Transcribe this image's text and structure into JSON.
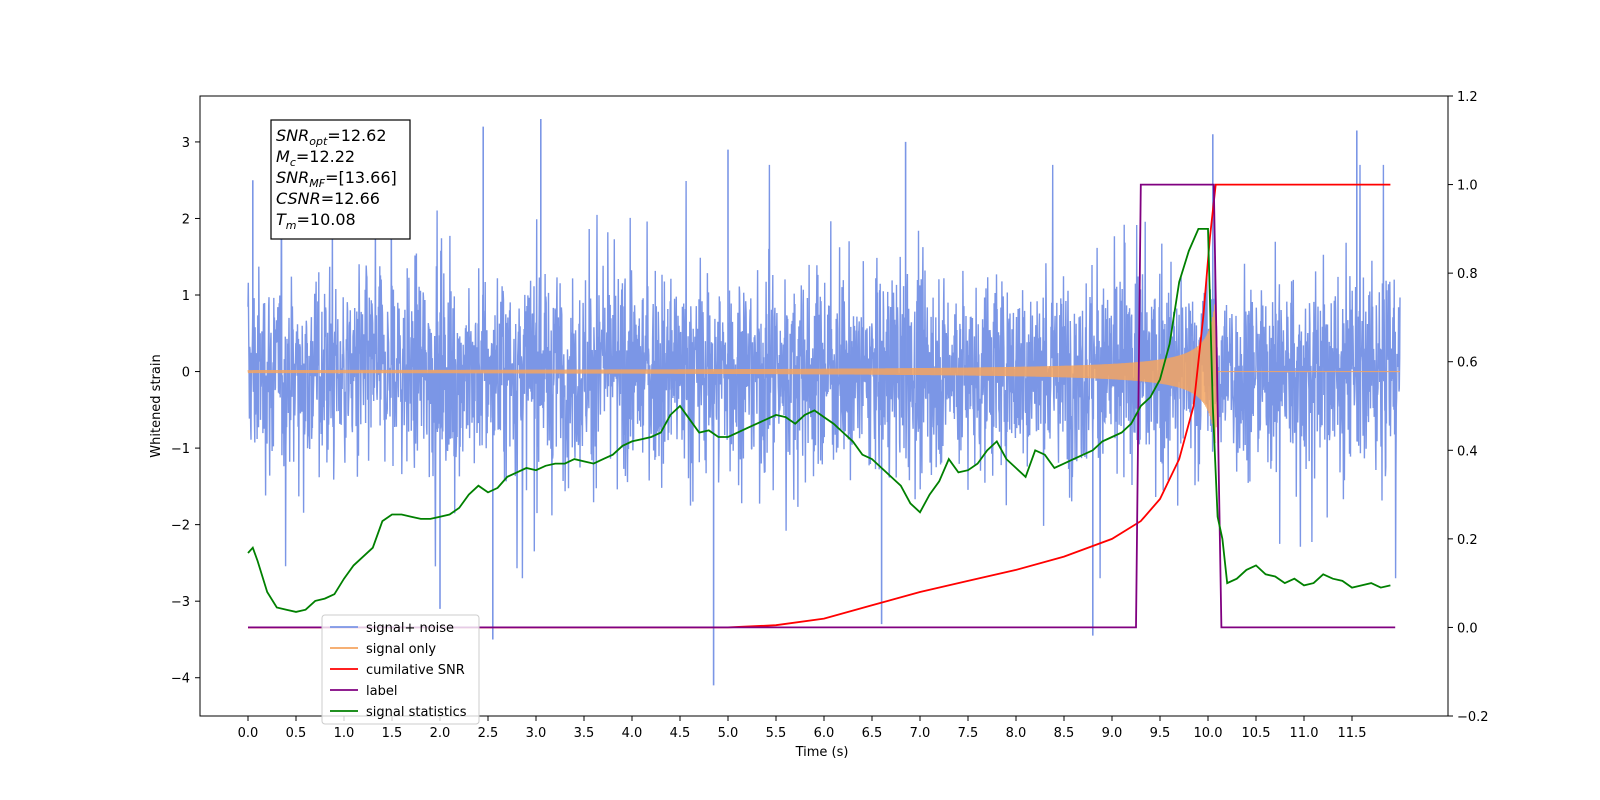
{
  "chart_data": {
    "type": "line",
    "xlabel": "Time (s)",
    "ylabel_left": "Whitened strain",
    "ylabel_right": "",
    "xlim": [
      -0.5,
      12.5
    ],
    "ylim_left": [
      -4.5,
      3.6
    ],
    "ylim_right": [
      -0.2,
      1.2
    ],
    "x_ticks": [
      "0.0",
      "0.5",
      "1.0",
      "1.5",
      "2.0",
      "2.5",
      "3.0",
      "3.5",
      "4.0",
      "4.5",
      "5.0",
      "5.5",
      "6.0",
      "6.5",
      "7.0",
      "7.5",
      "8.0",
      "8.5",
      "9.0",
      "9.5",
      "10.0",
      "10.5",
      "11.0",
      "11.5"
    ],
    "y_ticks_left": [
      "3",
      "2",
      "1",
      "0",
      "−1",
      "−2",
      "−3",
      "−4"
    ],
    "y_ticks_right": [
      "1.2",
      "1.0",
      "0.8",
      "0.6",
      "0.4",
      "0.2",
      "0.0",
      "−0.2"
    ],
    "grid": false,
    "legend_position": "lower-left",
    "annotation": {
      "lines": [
        {
          "sym": "SNR",
          "sub": "opt",
          "value": "=12.62"
        },
        {
          "sym": "M",
          "sub": "c",
          "value": "=12.22"
        },
        {
          "sym": "SNR",
          "sub": "MF",
          "value": "=[13.66]"
        },
        {
          "sym": "CSNR",
          "sub": "",
          "value": "=12.66"
        },
        {
          "sym": "T",
          "sub": "m",
          "value": "=10.08"
        }
      ]
    },
    "series": [
      {
        "name": "signal+ noise",
        "color": "#7b96e6",
        "axis": "left",
        "x_range": [
          0.0,
          12.0
        ],
        "typical_band": [
          -1.5,
          1.5
        ],
        "peaks": [
          {
            "x": 0.05,
            "y": 2.5
          },
          {
            "x": 2.45,
            "y": 3.2
          },
          {
            "x": 3.05,
            "y": 3.3
          },
          {
            "x": 5.0,
            "y": 2.9
          },
          {
            "x": 6.85,
            "y": 3.0
          },
          {
            "x": 10.05,
            "y": 3.1
          },
          {
            "x": 11.55,
            "y": 3.15
          },
          {
            "x": 4.85,
            "y": -4.1
          },
          {
            "x": 2.55,
            "y": -3.5
          },
          {
            "x": 8.8,
            "y": -3.45
          },
          {
            "x": 2.0,
            "y": -3.1
          },
          {
            "x": 6.6,
            "y": -3.3
          }
        ]
      },
      {
        "name": "signal only",
        "color": "#f4a460",
        "axis": "left",
        "merger_time": 10.08,
        "peak_amplitude": 1.0
      },
      {
        "name": "cumilative SNR",
        "color": "#ff0000",
        "axis": "right",
        "x": [
          0.0,
          5.0,
          5.5,
          6.0,
          6.5,
          7.0,
          7.5,
          8.0,
          8.5,
          9.0,
          9.3,
          9.5,
          9.7,
          9.85,
          9.95,
          10.02,
          10.08,
          10.5,
          11.0,
          11.9
        ],
        "y": [
          0.0,
          0.0,
          0.005,
          0.02,
          0.05,
          0.08,
          0.105,
          0.13,
          0.16,
          0.2,
          0.24,
          0.29,
          0.38,
          0.5,
          0.7,
          0.88,
          1.0,
          1.0,
          1.0,
          1.0
        ]
      },
      {
        "name": "label",
        "color": "#800080",
        "axis": "right",
        "x": [
          0.0,
          9.25,
          9.3,
          10.06,
          10.14,
          11.95
        ],
        "y": [
          0.0,
          0.0,
          1.0,
          1.0,
          0.0,
          0.0
        ]
      },
      {
        "name": "signal statistics",
        "color": "#008000",
        "axis": "right",
        "x": [
          0.0,
          0.05,
          0.1,
          0.2,
          0.3,
          0.4,
          0.5,
          0.6,
          0.7,
          0.8,
          0.9,
          1.0,
          1.1,
          1.2,
          1.3,
          1.4,
          1.5,
          1.6,
          1.7,
          1.8,
          1.9,
          2.0,
          2.1,
          2.2,
          2.3,
          2.4,
          2.5,
          2.6,
          2.7,
          2.8,
          2.9,
          3.0,
          3.1,
          3.2,
          3.3,
          3.4,
          3.5,
          3.6,
          3.7,
          3.8,
          3.9,
          4.0,
          4.1,
          4.2,
          4.3,
          4.4,
          4.5,
          4.6,
          4.7,
          4.8,
          4.9,
          5.0,
          5.1,
          5.2,
          5.3,
          5.4,
          5.5,
          5.6,
          5.7,
          5.8,
          5.9,
          6.0,
          6.1,
          6.2,
          6.3,
          6.4,
          6.5,
          6.6,
          6.7,
          6.8,
          6.9,
          7.0,
          7.1,
          7.2,
          7.3,
          7.4,
          7.5,
          7.6,
          7.7,
          7.8,
          7.9,
          8.0,
          8.1,
          8.2,
          8.3,
          8.4,
          8.5,
          8.6,
          8.7,
          8.8,
          8.9,
          9.0,
          9.1,
          9.2,
          9.3,
          9.4,
          9.5,
          9.6,
          9.7,
          9.8,
          9.9,
          10.0,
          10.05,
          10.1,
          10.15,
          10.2,
          10.3,
          10.4,
          10.5,
          10.6,
          10.7,
          10.8,
          10.9,
          11.0,
          11.1,
          11.2,
          11.3,
          11.4,
          11.5,
          11.6,
          11.7,
          11.8,
          11.9
        ],
        "y": [
          0.168,
          0.18,
          0.15,
          0.08,
          0.045,
          0.04,
          0.035,
          0.04,
          0.06,
          0.065,
          0.075,
          0.11,
          0.14,
          0.16,
          0.18,
          0.24,
          0.255,
          0.255,
          0.25,
          0.245,
          0.245,
          0.25,
          0.255,
          0.27,
          0.3,
          0.32,
          0.305,
          0.315,
          0.34,
          0.35,
          0.36,
          0.355,
          0.365,
          0.37,
          0.37,
          0.38,
          0.375,
          0.37,
          0.38,
          0.39,
          0.41,
          0.42,
          0.425,
          0.43,
          0.44,
          0.48,
          0.5,
          0.47,
          0.44,
          0.445,
          0.43,
          0.43,
          0.44,
          0.45,
          0.46,
          0.47,
          0.48,
          0.475,
          0.46,
          0.48,
          0.49,
          0.475,
          0.46,
          0.44,
          0.42,
          0.39,
          0.38,
          0.36,
          0.34,
          0.32,
          0.28,
          0.26,
          0.3,
          0.33,
          0.38,
          0.35,
          0.355,
          0.37,
          0.4,
          0.42,
          0.38,
          0.36,
          0.34,
          0.4,
          0.39,
          0.36,
          0.37,
          0.38,
          0.39,
          0.4,
          0.42,
          0.43,
          0.44,
          0.46,
          0.5,
          0.52,
          0.56,
          0.64,
          0.78,
          0.85,
          0.9,
          0.9,
          0.5,
          0.25,
          0.2,
          0.1,
          0.11,
          0.13,
          0.14,
          0.12,
          0.115,
          0.1,
          0.11,
          0.095,
          0.1,
          0.12,
          0.11,
          0.105,
          0.09,
          0.095,
          0.1,
          0.09,
          0.095
        ]
      }
    ]
  }
}
